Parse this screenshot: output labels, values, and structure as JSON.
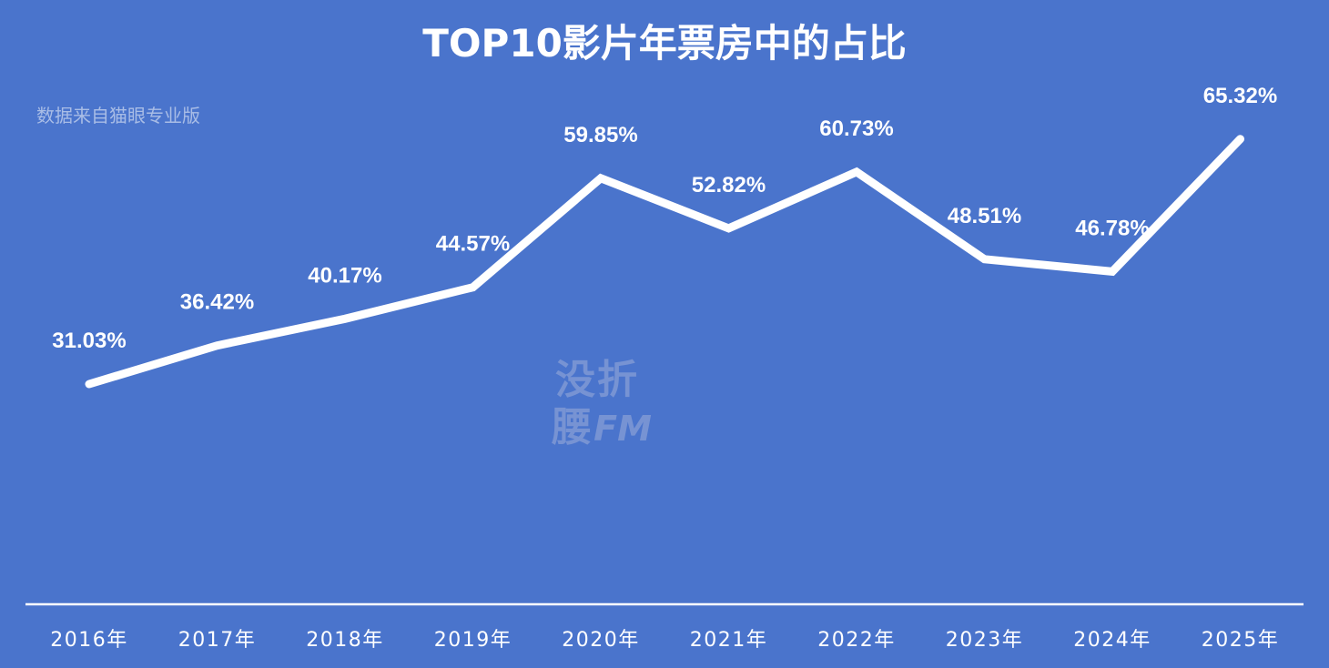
{
  "chart_data": {
    "type": "line",
    "title": "TOP10影片年票房中的占比",
    "subtitle": "数据来自猫眼专业版",
    "categories": [
      "2016年",
      "2017年",
      "2018年",
      "2019年",
      "2020年",
      "2021年",
      "2022年",
      "2023年",
      "2024年",
      "2025年"
    ],
    "values": [
      31.03,
      36.42,
      40.17,
      44.57,
      59.85,
      52.82,
      60.73,
      48.51,
      46.78,
      65.32
    ],
    "data_labels": [
      "31.03%",
      "36.42%",
      "40.17%",
      "44.57%",
      "59.85%",
      "52.82%",
      "60.73%",
      "48.51%",
      "46.78%",
      "65.32%"
    ],
    "xlabel": "",
    "ylabel": "",
    "grid": false,
    "legend": "none"
  },
  "watermark": {
    "line1": "没折",
    "line2a": "腰",
    "line2b": "FM"
  },
  "colors": {
    "background": "#4a74cc",
    "line": "#ffffff",
    "source_text": "#a9bde6",
    "watermark": "#7793d3"
  }
}
